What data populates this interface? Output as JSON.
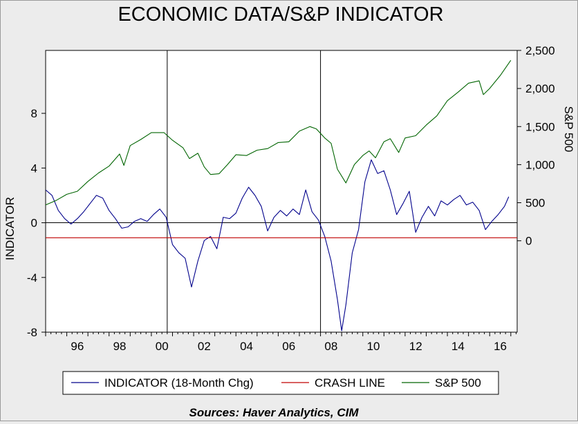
{
  "chart_data": {
    "type": "line",
    "title": "ECONOMIC DATA/S&P INDICATOR",
    "ylabel_left": "INDICATOR",
    "ylabel_right": "S&P 500",
    "x_tick_labels": [
      "96",
      "98",
      "00",
      "02",
      "04",
      "06",
      "08",
      "10",
      "12",
      "14",
      "16"
    ],
    "x_tick_values": [
      1996,
      1998,
      2000,
      2002,
      2004,
      2006,
      2008,
      2010,
      2012,
      2014,
      2016
    ],
    "xlim": [
      1995.0,
      2017.3
    ],
    "ylim_left": [
      -8,
      12.6
    ],
    "yticks_left": [
      {
        "value": 8,
        "label": "8"
      },
      {
        "value": 4,
        "label": "4"
      },
      {
        "value": 0,
        "label": "0"
      },
      {
        "value": -4,
        "label": "-4"
      },
      {
        "value": -8,
        "label": "-8"
      }
    ],
    "ylim_right": [
      -1200,
      2500
    ],
    "yticks_right": [
      {
        "value": 2500,
        "label": "2,500"
      },
      {
        "value": 2000,
        "label": "2,000"
      },
      {
        "value": 1500,
        "label": "1,500"
      },
      {
        "value": 1000,
        "label": "1,000"
      },
      {
        "value": 500,
        "label": "500"
      },
      {
        "value": 0,
        "label": "0"
      }
    ],
    "vertical_lines_x": [
      2000.75,
      2008.0
    ],
    "zero_line_left": 0,
    "legend_position": "bottom",
    "series": [
      {
        "name": "INDICATOR (18-Month Chg)",
        "axis": "left",
        "color": "#00008b",
        "x": [
          1995.0,
          1995.3,
          1995.6,
          1995.9,
          1996.2,
          1996.5,
          1996.8,
          1997.1,
          1997.4,
          1997.7,
          1998.0,
          1998.3,
          1998.6,
          1998.9,
          1999.2,
          1999.5,
          1999.8,
          2000.1,
          2000.4,
          2000.7,
          2001.0,
          2001.3,
          2001.6,
          2001.9,
          2002.2,
          2002.5,
          2002.8,
          2003.1,
          2003.4,
          2003.7,
          2004.0,
          2004.3,
          2004.6,
          2004.9,
          2005.2,
          2005.5,
          2005.8,
          2006.1,
          2006.4,
          2006.7,
          2007.0,
          2007.3,
          2007.6,
          2007.9,
          2008.2,
          2008.5,
          2008.8,
          2009.0,
          2009.2,
          2009.5,
          2009.8,
          2010.1,
          2010.4,
          2010.7,
          2011.0,
          2011.3,
          2011.6,
          2011.9,
          2012.2,
          2012.5,
          2012.8,
          2013.1,
          2013.4,
          2013.7,
          2014.0,
          2014.3,
          2014.6,
          2014.9,
          2015.2,
          2015.5,
          2015.8,
          2016.1,
          2016.4,
          2016.7,
          2016.9
        ],
        "y": [
          2.4,
          2.0,
          0.9,
          0.3,
          -0.1,
          0.3,
          0.8,
          1.4,
          2.0,
          1.8,
          0.9,
          0.3,
          -0.4,
          -0.3,
          0.1,
          0.3,
          0.1,
          0.6,
          1.0,
          0.4,
          -1.6,
          -2.2,
          -2.6,
          -4.7,
          -2.8,
          -1.3,
          -1.0,
          -1.9,
          0.4,
          0.3,
          0.7,
          1.8,
          2.6,
          2.0,
          1.2,
          -0.6,
          0.4,
          0.9,
          0.5,
          1.0,
          0.6,
          2.4,
          0.8,
          0.2,
          -1.0,
          -2.8,
          -5.6,
          -7.9,
          -6.0,
          -2.2,
          -0.5,
          3.0,
          4.6,
          3.6,
          3.8,
          2.4,
          0.6,
          1.4,
          2.3,
          -0.7,
          0.4,
          1.2,
          0.5,
          1.6,
          1.3,
          1.7,
          2.0,
          1.3,
          1.5,
          0.9,
          -0.5,
          0.1,
          0.6,
          1.2,
          1.9
        ]
      },
      {
        "name": "CRASH LINE",
        "axis": "left",
        "color": "#c00000",
        "x": [
          1995.0,
          2017.3
        ],
        "y": [
          -1.1,
          -1.1
        ]
      },
      {
        "name": "S&P 500",
        "axis": "right",
        "color": "#006400",
        "x": [
          1995.0,
          1995.5,
          1996.0,
          1996.5,
          1997.0,
          1997.5,
          1998.0,
          1998.5,
          1998.7,
          1999.0,
          1999.5,
          2000.0,
          2000.6,
          2001.0,
          2001.5,
          2001.8,
          2002.2,
          2002.5,
          2002.8,
          2003.2,
          2003.6,
          2004.0,
          2004.5,
          2005.0,
          2005.5,
          2006.0,
          2006.5,
          2007.0,
          2007.5,
          2007.8,
          2008.2,
          2008.5,
          2008.8,
          2009.2,
          2009.6,
          2010.0,
          2010.3,
          2010.6,
          2011.0,
          2011.3,
          2011.7,
          2012.0,
          2012.5,
          2013.0,
          2013.5,
          2014.0,
          2014.5,
          2015.0,
          2015.5,
          2015.7,
          2016.0,
          2016.5,
          2017.0
        ],
        "y": [
          470,
          530,
          610,
          650,
          780,
          890,
          980,
          1140,
          990,
          1250,
          1330,
          1420,
          1420,
          1320,
          1220,
          1080,
          1150,
          970,
          870,
          880,
          1000,
          1130,
          1120,
          1190,
          1210,
          1290,
          1300,
          1440,
          1500,
          1470,
          1350,
          1280,
          940,
          760,
          1000,
          1120,
          1180,
          1090,
          1300,
          1340,
          1160,
          1350,
          1380,
          1520,
          1640,
          1840,
          1950,
          2070,
          2100,
          1920,
          2000,
          2170,
          2370
        ]
      }
    ]
  },
  "footer": {
    "source_text": "Sources:  Haver Analytics, CIM"
  }
}
